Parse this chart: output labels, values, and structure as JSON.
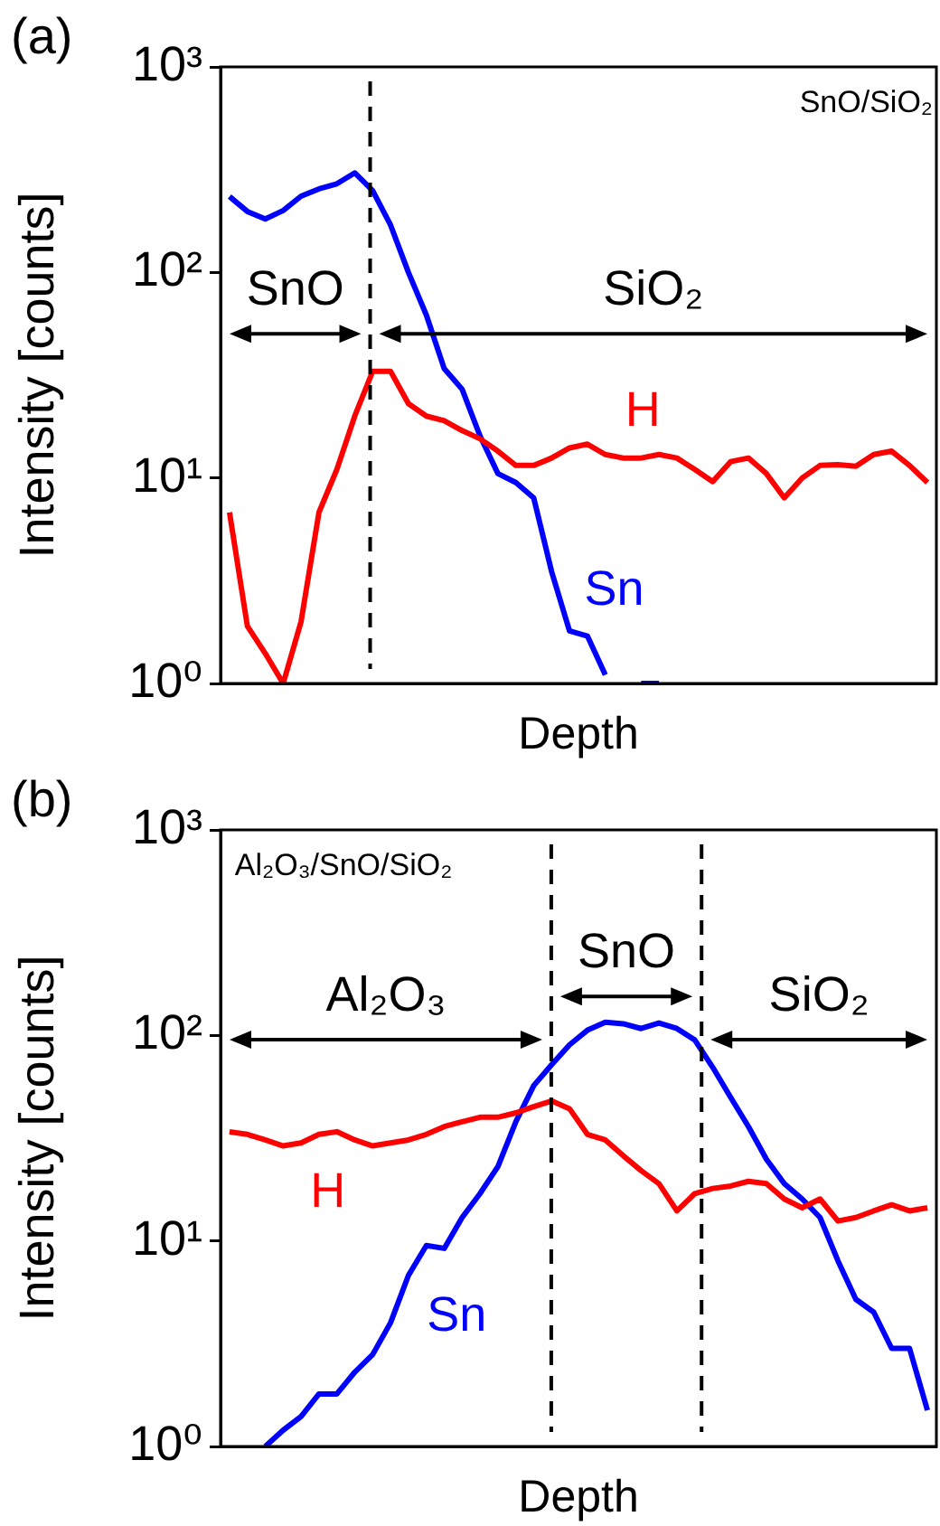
{
  "chart_data": [
    {
      "type": "line",
      "title": "(a)",
      "xlabel": "Depth",
      "ylabel": "Intensity [counts]",
      "log": true,
      "ylim": [
        1,
        1000
      ],
      "categories": [
        null,
        null,
        null,
        null,
        null,
        null,
        null,
        null,
        null,
        null,
        null,
        null,
        null,
        null,
        null,
        null,
        null,
        null,
        null,
        null,
        null,
        null,
        null,
        null,
        null,
        null,
        null,
        null,
        null,
        null,
        null,
        null,
        null,
        null,
        null,
        null,
        null,
        null,
        null,
        null
      ],
      "yticks": [
        {
          "value": 1,
          "label": "10⁰"
        },
        {
          "value": 10,
          "label": "10¹"
        },
        {
          "value": 100,
          "label": "10²"
        },
        {
          "value": 1000,
          "label": "10³"
        }
      ],
      "annotations": [
        "SnO/SiO₂",
        "SnO",
        "SiO₂"
      ],
      "series": [
        {
          "name": "H",
          "color": "#ff0000",
          "values": [
            6.8,
            1.9,
            1.4,
            1.0,
            2.0,
            6.8,
            11,
            20,
            33,
            33,
            23,
            20,
            19,
            17,
            15.5,
            13.5,
            11.5,
            11.5,
            12.5,
            14,
            14.6,
            13,
            12.5,
            12.5,
            13,
            12.5,
            11,
            9.6,
            12,
            12.5,
            10.5,
            8,
            10,
            11.5,
            11.6,
            11.4,
            13,
            13.5,
            11.5,
            9.5
          ]
        },
        {
          "name": "Sn",
          "color": "#0000ff",
          "values": [
            234,
            198,
            182,
            200,
            235,
            255,
            270,
            305,
            250,
            170,
            100,
            62,
            34,
            27,
            16,
            10.5,
            9.5,
            8,
            3.5,
            1.8,
            1.7,
            1.1,
            null,
            1.0,
            1.0,
            null,
            null,
            null,
            null,
            null,
            null,
            null,
            null,
            null,
            null,
            null,
            null,
            null,
            null,
            null
          ]
        }
      ]
    },
    {
      "type": "line",
      "title": "(b)",
      "xlabel": "Depth",
      "ylabel": "Intensity [counts]",
      "log": true,
      "ylim": [
        1,
        1000
      ],
      "categories": [
        null,
        null,
        null,
        null,
        null,
        null,
        null,
        null,
        null,
        null,
        null,
        null,
        null,
        null,
        null,
        null,
        null,
        null,
        null,
        null,
        null,
        null,
        null,
        null,
        null,
        null,
        null,
        null,
        null,
        null,
        null,
        null,
        null,
        null,
        null,
        null,
        null,
        null,
        null,
        null
      ],
      "yticks": [
        {
          "value": 1,
          "label": "10⁰"
        },
        {
          "value": 10,
          "label": "10¹"
        },
        {
          "value": 100,
          "label": "10²"
        },
        {
          "value": 1000,
          "label": "10³"
        }
      ],
      "annotations": [
        "Al₂O₃/SnO/SiO₂",
        "Al₂O₃",
        "SnO",
        "SiO₂"
      ],
      "series": [
        {
          "name": "H",
          "color": "#ff0000",
          "values": [
            34,
            33,
            31,
            29,
            30,
            33,
            34,
            31,
            29,
            30,
            31,
            33,
            36,
            38,
            40,
            40,
            42,
            45,
            48,
            44,
            33,
            31,
            26,
            22,
            19,
            14,
            17,
            18,
            18.5,
            19.5,
            19,
            16,
            14.5,
            16,
            12.5,
            13,
            14,
            15,
            14,
            14.5
          ]
        },
        {
          "name": "Sn",
          "color": "#0000ff",
          "values": [
            null,
            null,
            1.0,
            1.2,
            1.4,
            1.8,
            1.8,
            2.3,
            2.8,
            4,
            6.8,
            9.5,
            9.2,
            13,
            17,
            23,
            38,
            57,
            72,
            90,
            106,
            116,
            114,
            108,
            115,
            108,
            95,
            70,
            50,
            36,
            25,
            19,
            16,
            13,
            8,
            5.2,
            4.5,
            3,
            3,
            1.5
          ]
        }
      ]
    }
  ]
}
